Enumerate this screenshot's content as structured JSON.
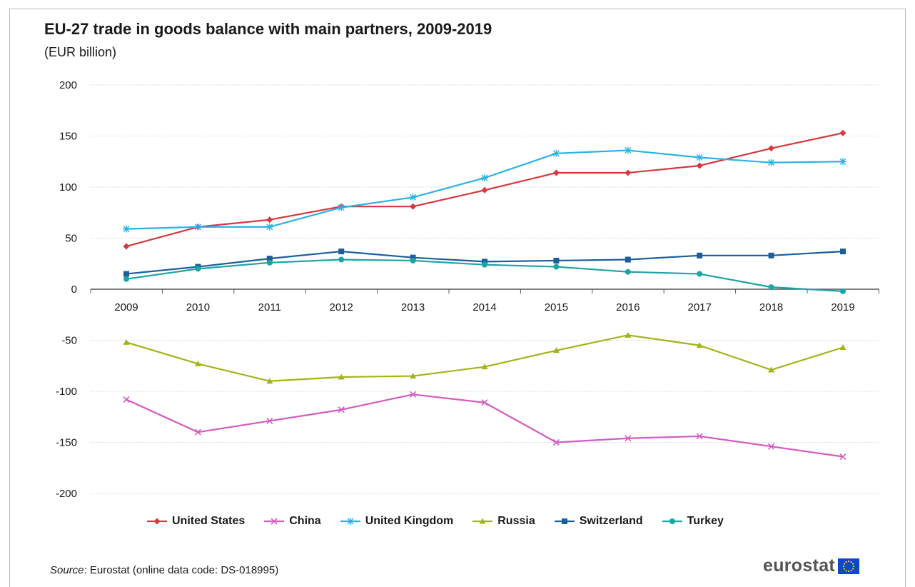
{
  "chart_data": {
    "type": "line",
    "title": "EU-27 trade in goods balance with main partners, 2009-2019",
    "subtitle": "(EUR billion)",
    "x": [
      "2009",
      "2010",
      "2011",
      "2012",
      "2013",
      "2014",
      "2015",
      "2016",
      "2017",
      "2018",
      "2019"
    ],
    "ylim": [
      -200,
      200
    ],
    "yticks": [
      200,
      150,
      100,
      50,
      0,
      -50,
      -100,
      -150,
      -200
    ],
    "grid": true,
    "legend_position": "bottom",
    "series": [
      {
        "name": "United States",
        "color": "#d6383d",
        "marker": "diamond",
        "values": [
          42,
          61,
          68,
          81,
          81,
          97,
          114,
          114,
          121,
          138,
          153
        ]
      },
      {
        "name": "China",
        "color": "#d45bc0",
        "marker": "x",
        "values": [
          -108,
          -140,
          -129,
          -118,
          -103,
          -111,
          -150,
          -146,
          -144,
          -154,
          -164
        ]
      },
      {
        "name": "United Kingdom",
        "color": "#29b2e8",
        "marker": "star",
        "values": [
          59,
          61,
          61,
          80,
          90,
          109,
          133,
          136,
          129,
          124,
          125
        ]
      },
      {
        "name": "Russia",
        "color": "#a3b419",
        "marker": "triangle",
        "values": [
          -52,
          -73,
          -90,
          -86,
          -85,
          -76,
          -60,
          -45,
          -55,
          -79,
          -57
        ]
      },
      {
        "name": "Switzerland",
        "color": "#1c5d9b",
        "marker": "square",
        "values": [
          15,
          22,
          30,
          37,
          31,
          27,
          28,
          29,
          33,
          33,
          37
        ]
      },
      {
        "name": "Turkey",
        "color": "#1ba4a4",
        "marker": "circle",
        "values": [
          10,
          20,
          26,
          29,
          28,
          24,
          22,
          17,
          15,
          2,
          -2
        ]
      }
    ]
  },
  "footer": {
    "source_label": "Source",
    "source_text": ": Eurostat (online data code: DS-018995)",
    "logo_text": "eurostat",
    "logo_flag_color": "#0e47cb",
    "logo_star_color": "#ffdd00"
  }
}
